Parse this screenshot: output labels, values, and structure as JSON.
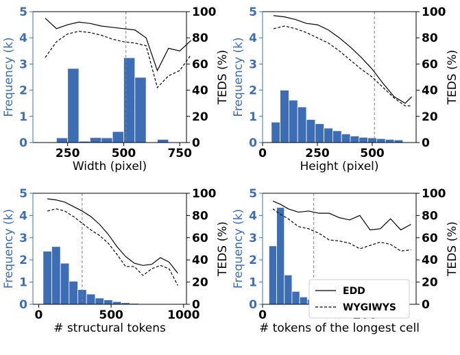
{
  "colors": {
    "bar": "#3D6EB5",
    "left_axis": "#3D6EB5",
    "right_axis": "#000000",
    "threshold": "#808080"
  },
  "legend": {
    "entries": [
      {
        "label": "EDD",
        "style": "solid"
      },
      {
        "label": "WYGIWYS",
        "style": "dashed"
      }
    ],
    "placement": "bottom-right of the bottom-right panel"
  },
  "chart_data": [
    {
      "type": "bar",
      "panel": "top-left",
      "xlabel": "Width (pixel)",
      "ylabel_left": "Frequency (k)",
      "ylabel_right": "TEDS (%)",
      "xlim": [
        95,
        780
      ],
      "ylim_left": [
        0,
        5
      ],
      "ylim_right": [
        0,
        100
      ],
      "xticks": [
        250,
        500,
        750
      ],
      "yticks_left": [
        0,
        1,
        2,
        3,
        4,
        5
      ],
      "yticks_right": [
        0,
        20,
        40,
        60,
        80,
        100
      ],
      "bin_width": 50,
      "bars": [
        {
          "x": 175,
          "value": 0.01
        },
        {
          "x": 225,
          "value": 0.18
        },
        {
          "x": 275,
          "value": 2.83
        },
        {
          "x": 325,
          "value": 0.05
        },
        {
          "x": 375,
          "value": 0.19
        },
        {
          "x": 425,
          "value": 0.18
        },
        {
          "x": 475,
          "value": 0.42
        },
        {
          "x": 525,
          "value": 3.24
        },
        {
          "x": 575,
          "value": 2.49
        },
        {
          "x": 675,
          "value": 0.12
        },
        {
          "x": 725,
          "value": 0.02
        }
      ],
      "threshold_x": 510,
      "series": [
        {
          "name": "EDD",
          "style": "solid",
          "x": [
            150,
            200,
            250,
            300,
            350,
            400,
            450,
            500,
            550,
            600,
            650,
            700,
            750,
            800
          ],
          "values": [
            95,
            87,
            90,
            92,
            91,
            89,
            88,
            87,
            86,
            80,
            55,
            72,
            70,
            78
          ]
        },
        {
          "name": "WYGIWYS",
          "style": "dashed",
          "x": [
            150,
            200,
            250,
            300,
            350,
            400,
            450,
            500,
            550,
            600,
            650,
            700,
            750,
            800
          ],
          "values": [
            65,
            77,
            83,
            85,
            84,
            82,
            79,
            77,
            76,
            74,
            42,
            51,
            55,
            67
          ]
        }
      ]
    },
    {
      "type": "bar",
      "panel": "top-right",
      "xlabel": "Height (pixel)",
      "ylabel_left": "Frequency (k)",
      "ylabel_right": "TEDS (%)",
      "xlim": [
        0,
        700
      ],
      "ylim_left": [
        0,
        5
      ],
      "ylim_right": [
        0,
        100
      ],
      "xticks": [
        0,
        250,
        500
      ],
      "yticks_left": [
        0,
        1,
        2,
        3,
        4,
        5
      ],
      "yticks_right": [
        0,
        20,
        40,
        60,
        80,
        100
      ],
      "bin_width": 40,
      "bars": [
        {
          "x": 60,
          "value": 0.78
        },
        {
          "x": 100,
          "value": 2.0
        },
        {
          "x": 140,
          "value": 1.62
        },
        {
          "x": 180,
          "value": 1.36
        },
        {
          "x": 220,
          "value": 0.88
        },
        {
          "x": 260,
          "value": 0.72
        },
        {
          "x": 300,
          "value": 0.55
        },
        {
          "x": 340,
          "value": 0.45
        },
        {
          "x": 380,
          "value": 0.33
        },
        {
          "x": 420,
          "value": 0.25
        },
        {
          "x": 460,
          "value": 0.2
        },
        {
          "x": 500,
          "value": 0.18
        },
        {
          "x": 540,
          "value": 0.15
        },
        {
          "x": 580,
          "value": 0.12
        },
        {
          "x": 620,
          "value": 0.1
        }
      ],
      "threshold_x": 510,
      "series": [
        {
          "name": "EDD",
          "style": "solid",
          "x": [
            50,
            100,
            150,
            200,
            250,
            300,
            350,
            400,
            450,
            500,
            550,
            600,
            650,
            680
          ],
          "values": [
            97,
            96,
            94,
            91,
            90,
            86,
            80,
            73,
            65,
            56,
            45,
            35,
            30,
            35
          ]
        },
        {
          "name": "WYGIWYS",
          "style": "dashed",
          "x": [
            50,
            100,
            150,
            200,
            250,
            300,
            350,
            400,
            450,
            500,
            550,
            600,
            650,
            680
          ],
          "values": [
            87,
            89,
            87,
            84,
            80,
            76,
            70,
            63,
            56,
            50,
            42,
            34,
            28,
            28
          ]
        }
      ]
    },
    {
      "type": "bar",
      "panel": "bottom-left",
      "xlabel": "# structural tokens",
      "ylabel_left": "Frequency (k)",
      "ylabel_right": "TEDS (%)",
      "xlim": [
        -40,
        1020
      ],
      "ylim_left": [
        0,
        5
      ],
      "ylim_right": [
        0,
        100
      ],
      "xticks": [
        0,
        500,
        1000
      ],
      "yticks_left": [
        0,
        1,
        2,
        3,
        4,
        5
      ],
      "yticks_right": [
        0,
        20,
        40,
        60,
        80,
        100
      ],
      "bin_width": 60,
      "bars": [
        {
          "x": 60,
          "value": 2.39
        },
        {
          "x": 120,
          "value": 2.6
        },
        {
          "x": 180,
          "value": 1.85
        },
        {
          "x": 240,
          "value": 1.04
        },
        {
          "x": 300,
          "value": 0.66
        },
        {
          "x": 360,
          "value": 0.46
        },
        {
          "x": 420,
          "value": 0.28
        },
        {
          "x": 480,
          "value": 0.2
        },
        {
          "x": 540,
          "value": 0.12
        },
        {
          "x": 600,
          "value": 0.07
        },
        {
          "x": 660,
          "value": 0.04
        },
        {
          "x": 720,
          "value": 0.02
        },
        {
          "x": 780,
          "value": 0.02
        },
        {
          "x": 840,
          "value": 0.01
        },
        {
          "x": 900,
          "value": 0.01
        }
      ],
      "threshold_x": 300,
      "series": [
        {
          "name": "EDD",
          "style": "solid",
          "x": [
            60,
            120,
            180,
            240,
            300,
            360,
            420,
            480,
            540,
            600,
            660,
            720,
            780,
            840,
            900,
            960
          ],
          "values": [
            95,
            94,
            92,
            88,
            84,
            79,
            72,
            63,
            52,
            43,
            37,
            35,
            36,
            42,
            38,
            28
          ]
        },
        {
          "name": "WYGIWYS",
          "style": "dashed",
          "x": [
            60,
            120,
            180,
            240,
            300,
            360,
            420,
            480,
            540,
            600,
            660,
            720,
            780,
            840,
            900,
            960
          ],
          "values": [
            84,
            86,
            84,
            79,
            73,
            67,
            62,
            55,
            45,
            34,
            34,
            26,
            32,
            35,
            32,
            17
          ]
        }
      ]
    },
    {
      "type": "bar",
      "panel": "bottom-right",
      "xlabel": "# tokens of the longest cell",
      "ylabel_left": "Frequency (k)",
      "ylabel_right": "TEDS (%)",
      "xlim": [
        0,
        300
      ],
      "ylim_left": [
        0,
        5
      ],
      "ylim_right": [
        0,
        100
      ],
      "xticks": [
        0,
        200
      ],
      "yticks_left": [
        0,
        1,
        2,
        3,
        4,
        5
      ],
      "yticks_right": [
        0,
        20,
        40,
        60,
        80,
        100
      ],
      "bin_width": 15,
      "bars": [
        {
          "x": 20,
          "value": 2.63
        },
        {
          "x": 35,
          "value": 4.36
        },
        {
          "x": 50,
          "value": 1.32
        },
        {
          "x": 65,
          "value": 0.58
        },
        {
          "x": 80,
          "value": 0.33
        },
        {
          "x": 95,
          "value": 0.22
        },
        {
          "x": 110,
          "value": 0.16
        },
        {
          "x": 125,
          "value": 0.12
        },
        {
          "x": 140,
          "value": 0.1
        },
        {
          "x": 155,
          "value": 0.08
        },
        {
          "x": 170,
          "value": 0.07
        },
        {
          "x": 185,
          "value": 0.06
        },
        {
          "x": 200,
          "value": 0.05
        }
      ],
      "threshold_x": 100,
      "series": [
        {
          "name": "EDD",
          "style": "solid",
          "x": [
            20,
            35,
            50,
            70,
            90,
            110,
            130,
            150,
            170,
            190,
            210,
            230,
            250,
            270,
            290
          ],
          "values": [
            93,
            90,
            86,
            83,
            84,
            82,
            82,
            78,
            76,
            80,
            67,
            68,
            77,
            67,
            72
          ]
        },
        {
          "name": "WYGIWYS",
          "style": "dashed",
          "x": [
            20,
            35,
            50,
            70,
            90,
            110,
            130,
            150,
            170,
            190,
            210,
            230,
            250,
            270,
            290
          ],
          "values": [
            86,
            81,
            77,
            70,
            68,
            64,
            58,
            57,
            55,
            50,
            53,
            56,
            54,
            48,
            49
          ]
        }
      ]
    }
  ]
}
